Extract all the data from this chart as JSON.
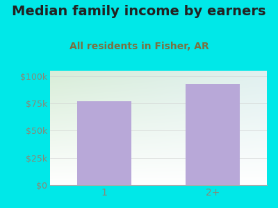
{
  "title": "Median family income by earners",
  "subtitle": "All residents in Fisher, AR",
  "categories": [
    "1",
    "2+"
  ],
  "values": [
    77000,
    93000
  ],
  "bar_color": "#b8a8d8",
  "background_color": "#00e8e8",
  "plot_bg_color_topleft": "#d8edd8",
  "plot_bg_color_topright": "#e0f0f0",
  "plot_bg_color_bottom": "#ffffff",
  "title_fontsize": 14,
  "subtitle_fontsize": 10,
  "yticks": [
    0,
    25000,
    50000,
    75000,
    100000
  ],
  "ytick_labels": [
    "$0",
    "$25k",
    "$50k",
    "$75k",
    "$100k"
  ],
  "ylim": [
    0,
    105000
  ],
  "tick_color": "#888877",
  "title_color": "#222222",
  "subtitle_color": "#7a7040"
}
